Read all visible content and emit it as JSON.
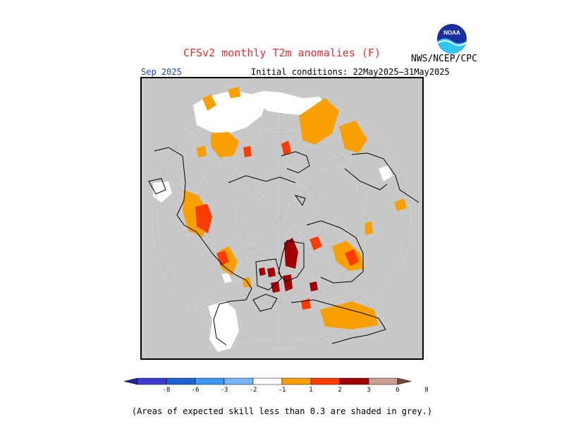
{
  "title": "CFSv2 monthly T2m anomalies (F)",
  "period": "Sep 2025",
  "initial_conditions": "Initial conditions: 22May2025–31May2025",
  "agency": "NWS/NCEP/CPC",
  "logo_text": "NOAA",
  "footnote": "(Areas of expected skill less than 0.3 are shaded in grey.)",
  "legend": {
    "tick_labels": [
      "-8",
      "-6",
      "-3",
      "-2",
      "-1",
      "1",
      "2",
      "3",
      "6",
      "8"
    ],
    "colors": [
      "#2020a0",
      "#3c3cd0",
      "#1e64d2",
      "#3c96f0",
      "#78b4f8",
      "#ffffff",
      "#f7a000",
      "#ff3c00",
      "#a00000",
      "#c8a090",
      "#7a4838"
    ]
  },
  "map": {
    "projection": "north-polar-stereographic",
    "low_skill_color": "#c8c8c8",
    "near_normal_color": "#ffffff",
    "coastline_color": "#000000",
    "grid_color": "#999999",
    "grid_style": "dotted"
  }
}
